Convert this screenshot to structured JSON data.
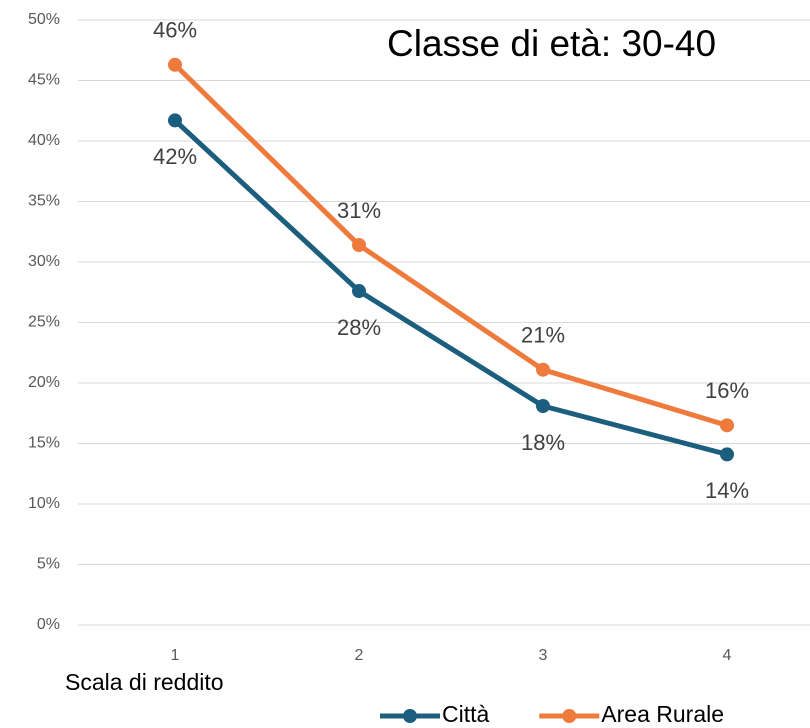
{
  "chart_data": {
    "type": "line",
    "title": "Classe di età: 30-40",
    "x_label": "Scala di reddito",
    "categories": [
      "1",
      "2",
      "3",
      "4"
    ],
    "series": [
      {
        "name": "Città",
        "color": "#1b5e7e",
        "values": [
          41.7,
          27.6,
          18.1,
          14.1
        ],
        "value_labels": [
          "42%",
          "28%",
          "18%",
          "14%"
        ]
      },
      {
        "name": "Area Rurale",
        "color": "#ee7a3c",
        "values": [
          46.3,
          31.4,
          21.1,
          16.5
        ],
        "value_labels": [
          "46%",
          "31%",
          "21%",
          "16%"
        ]
      }
    ],
    "ylim": [
      0,
      50
    ],
    "yticks": [
      {
        "value": 0,
        "label": "0%"
      },
      {
        "value": 5,
        "label": "5%"
      },
      {
        "value": 10,
        "label": "10%"
      },
      {
        "value": 15,
        "label": "15%"
      },
      {
        "value": 20,
        "label": "20%"
      },
      {
        "value": 25,
        "label": "25%"
      },
      {
        "value": 30,
        "label": "30%"
      },
      {
        "value": 35,
        "label": "35%"
      },
      {
        "value": 40,
        "label": "40%"
      },
      {
        "value": 45,
        "label": "45%"
      },
      {
        "value": 50,
        "label": "50%"
      }
    ],
    "grid": true
  }
}
